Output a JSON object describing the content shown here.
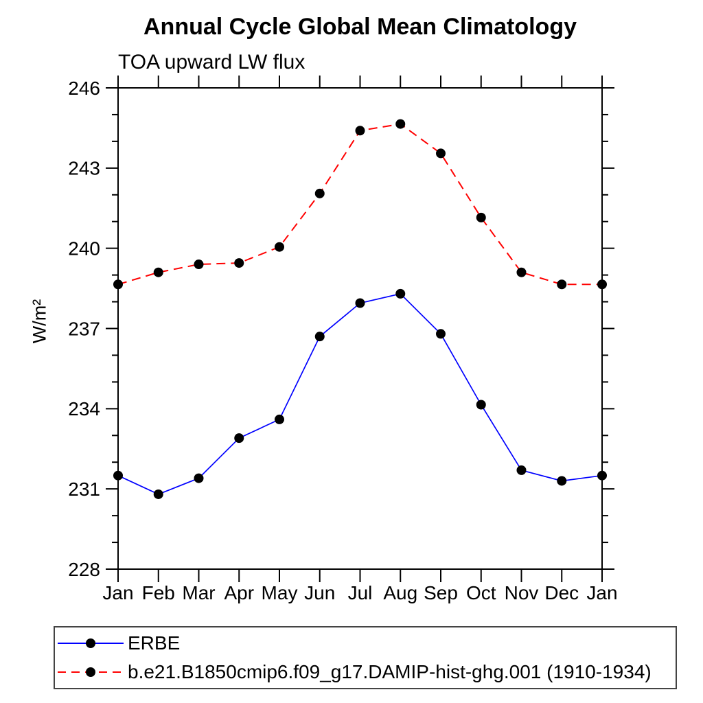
{
  "figure": {
    "title": "Annual Cycle Global Mean Climatology",
    "subtitle": "TOA upward LW flux",
    "ylabel": "W/m²"
  },
  "chart_data": {
    "type": "line",
    "title": "Annual Cycle Global Mean Climatology",
    "subtitle": "TOA upward LW flux",
    "xlabel": "",
    "ylabel": "W/m²",
    "x_categories": [
      "Jan",
      "Feb",
      "Mar",
      "Apr",
      "May",
      "Jun",
      "Jul",
      "Aug",
      "Sep",
      "Oct",
      "Nov",
      "Dec",
      "Jan"
    ],
    "ylim": [
      228,
      246
    ],
    "y_major_ticks": [
      228,
      231,
      234,
      237,
      240,
      243,
      246
    ],
    "y_minor_step": 1,
    "y_major_step": 3,
    "grid": false,
    "legend_position": "bottom-left-box",
    "axis_color": "#000000",
    "marker_color": "#000000",
    "series": [
      {
        "name": "ERBE",
        "color": "#0000ff",
        "line_style": "solid",
        "marker": "filled-circle",
        "values": [
          231.5,
          230.8,
          231.4,
          232.9,
          233.6,
          236.7,
          237.95,
          238.3,
          236.8,
          234.15,
          231.7,
          231.3,
          231.5
        ]
      },
      {
        "name": "b.e21.B1850cmip6.f09_g17.DAMIP-hist-ghg.001 (1910-1934)",
        "color": "#ff0000",
        "line_style": "dashed",
        "marker": "filled-circle",
        "values": [
          238.65,
          239.1,
          239.4,
          239.45,
          240.05,
          242.05,
          244.4,
          244.65,
          243.55,
          241.15,
          239.1,
          238.65,
          238.65
        ]
      }
    ]
  }
}
